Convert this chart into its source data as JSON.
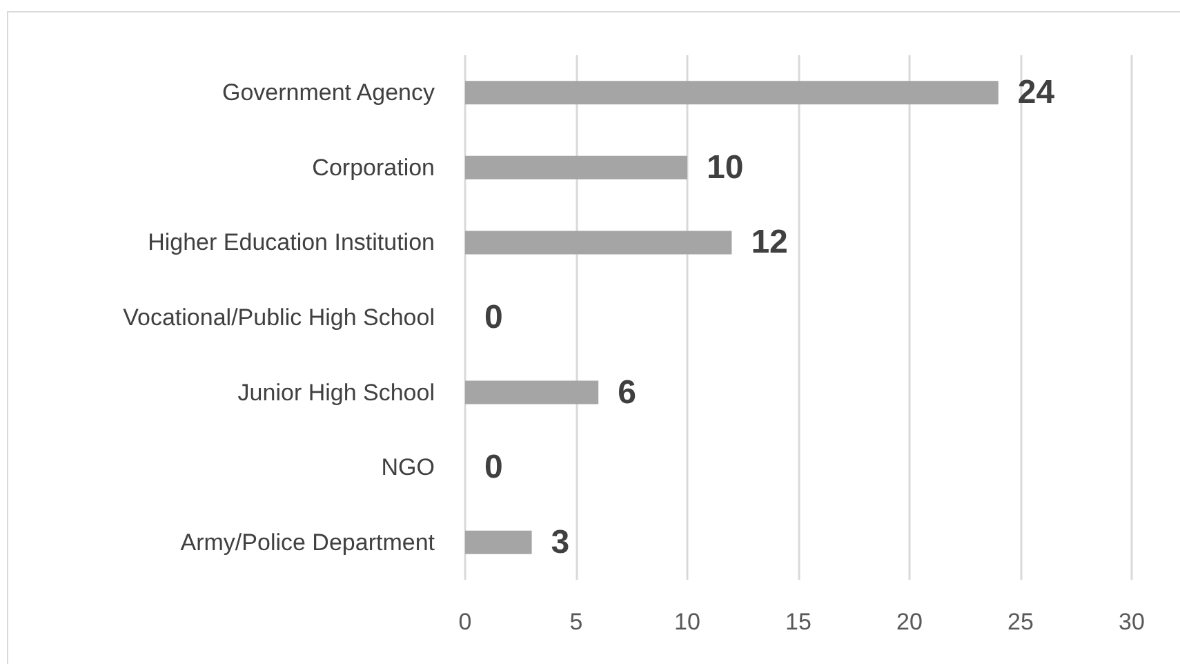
{
  "chart_data": {
    "type": "bar",
    "orientation": "horizontal",
    "categories": [
      "Government Agency",
      "Corporation",
      "Higher Education Institution",
      "Vocational/Public High School",
      "Junior High School",
      "NGO",
      "Army/Police Department"
    ],
    "values": [
      24,
      10,
      12,
      0,
      6,
      0,
      3
    ],
    "color": "#a5a5a5",
    "xlim": [
      0,
      30
    ],
    "xticks": [
      0,
      5,
      10,
      15,
      20,
      25,
      30
    ],
    "grid": "x",
    "data_labels": true
  }
}
